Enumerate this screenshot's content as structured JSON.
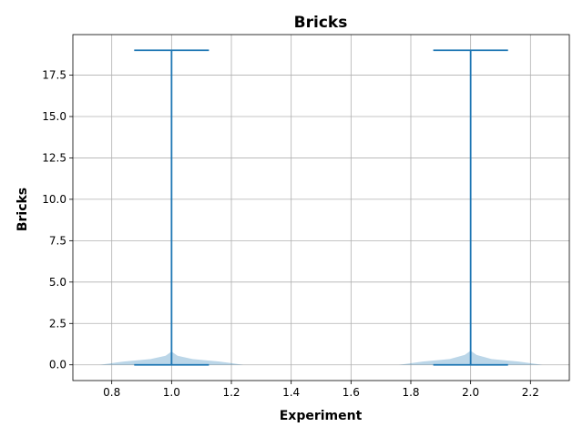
{
  "chart_data": {
    "type": "violin",
    "title": "Bricks",
    "xlabel": "Experiment",
    "ylabel": "Bricks",
    "xlim": [
      0.67,
      2.33
    ],
    "ylim": [
      -0.95,
      19.95
    ],
    "x_ticks": [
      0.8,
      1.0,
      1.2,
      1.4,
      1.6,
      1.8,
      2.0,
      2.2
    ],
    "x_tick_labels": [
      "0.8",
      "1.0",
      "1.2",
      "1.4",
      "1.6",
      "1.8",
      "2.0",
      "2.2"
    ],
    "y_ticks": [
      0.0,
      2.5,
      5.0,
      7.5,
      10.0,
      12.5,
      15.0,
      17.5
    ],
    "y_tick_labels": [
      "0.0",
      "2.5",
      "5.0",
      "7.5",
      "10.0",
      "12.5",
      "15.0",
      "17.5"
    ],
    "grid": true,
    "color": "#1f77b4",
    "cap_half_width": 0.125,
    "violins": [
      {
        "position": 1.0,
        "min": 0,
        "max": 19,
        "density_profile": [
          {
            "y": 0.0,
            "half_width": 0.24
          },
          {
            "y": 0.2,
            "half_width": 0.16
          },
          {
            "y": 0.35,
            "half_width": 0.07
          },
          {
            "y": 0.55,
            "half_width": 0.02
          },
          {
            "y": 0.8,
            "half_width": 0.0
          }
        ]
      },
      {
        "position": 2.0,
        "min": 0,
        "max": 19,
        "density_profile": [
          {
            "y": 0.0,
            "half_width": 0.24
          },
          {
            "y": 0.2,
            "half_width": 0.16
          },
          {
            "y": 0.35,
            "half_width": 0.07
          },
          {
            "y": 0.6,
            "half_width": 0.02
          },
          {
            "y": 0.85,
            "half_width": 0.0
          }
        ]
      }
    ]
  }
}
